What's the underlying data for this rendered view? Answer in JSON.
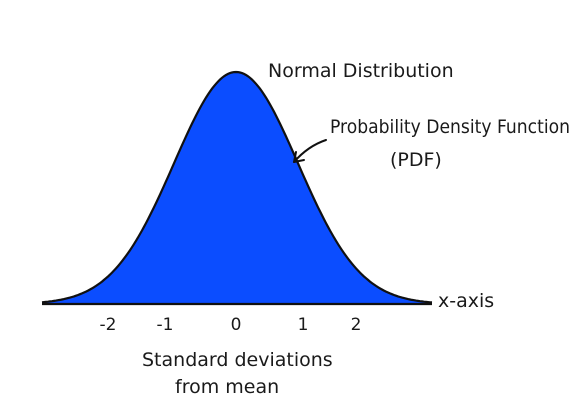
{
  "title": "Normal Distribution",
  "curve_label": {
    "line1": "Probability Density Function",
    "line2": "(PDF)"
  },
  "axis_label": "x-axis",
  "x_caption": {
    "line1": "Standard deviations",
    "line2": "from mean"
  },
  "ticks": [
    "-2",
    "-1",
    "0",
    "1",
    "2"
  ],
  "colors": {
    "fill": "#0b4dff",
    "stroke": "#111111",
    "text": "#1a1a1a"
  }
}
